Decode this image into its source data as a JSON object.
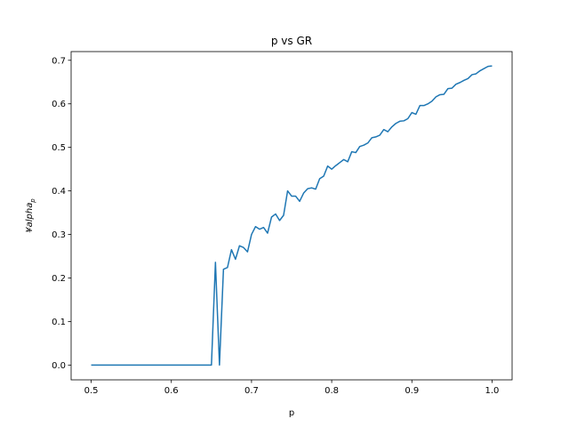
{
  "chart_data": {
    "type": "line",
    "title": "p vs GR",
    "xlabel": "p",
    "ylabel": "¥alpha",
    "ylabel_subscript": "p",
    "xlim": [
      0.475,
      1.025
    ],
    "ylim": [
      -0.034,
      0.72
    ],
    "xticks": [
      0.5,
      0.6,
      0.7,
      0.8,
      0.9,
      1.0
    ],
    "xtick_labels": [
      "0.5",
      "0.6",
      "0.7",
      "0.8",
      "0.9",
      "1.0"
    ],
    "yticks": [
      0.0,
      0.1,
      0.2,
      0.3,
      0.4,
      0.5,
      0.6,
      0.7
    ],
    "ytick_labels": [
      "0.0",
      "0.1",
      "0.2",
      "0.3",
      "0.4",
      "0.5",
      "0.6",
      "0.7"
    ],
    "grid": false,
    "line_color": "#1f77b4",
    "series": [
      {
        "x": [
          0.5,
          0.51,
          0.52,
          0.53,
          0.54,
          0.55,
          0.56,
          0.57,
          0.58,
          0.59,
          0.6,
          0.61,
          0.62,
          0.63,
          0.64,
          0.65,
          0.655,
          0.66,
          0.665,
          0.67,
          0.675,
          0.68,
          0.685,
          0.69,
          0.695,
          0.7,
          0.705,
          0.71,
          0.715,
          0.72,
          0.725,
          0.73,
          0.735,
          0.74,
          0.745,
          0.75,
          0.755,
          0.76,
          0.765,
          0.77,
          0.775,
          0.78,
          0.785,
          0.79,
          0.795,
          0.8,
          0.805,
          0.81,
          0.815,
          0.82,
          0.825,
          0.83,
          0.835,
          0.84,
          0.845,
          0.85,
          0.855,
          0.86,
          0.865,
          0.87,
          0.875,
          0.88,
          0.885,
          0.89,
          0.895,
          0.9,
          0.905,
          0.91,
          0.915,
          0.92,
          0.925,
          0.93,
          0.935,
          0.94,
          0.945,
          0.95,
          0.955,
          0.96,
          0.965,
          0.97,
          0.975,
          0.98,
          0.985,
          0.99,
          0.995,
          1.0
        ],
        "values": [
          0,
          0,
          0,
          0,
          0,
          0,
          0,
          0,
          0,
          0,
          0,
          0,
          0,
          0,
          0,
          0,
          0.236,
          0,
          0.22,
          0.224,
          0.265,
          0.243,
          0.274,
          0.27,
          0.26,
          0.3,
          0.318,
          0.312,
          0.316,
          0.303,
          0.34,
          0.347,
          0.332,
          0.344,
          0.4,
          0.388,
          0.388,
          0.376,
          0.395,
          0.405,
          0.407,
          0.404,
          0.428,
          0.434,
          0.457,
          0.45,
          0.458,
          0.465,
          0.472,
          0.467,
          0.49,
          0.488,
          0.502,
          0.505,
          0.51,
          0.522,
          0.524,
          0.528,
          0.541,
          0.536,
          0.547,
          0.555,
          0.56,
          0.561,
          0.566,
          0.58,
          0.576,
          0.596,
          0.596,
          0.6,
          0.606,
          0.616,
          0.621,
          0.622,
          0.635,
          0.636,
          0.645,
          0.649,
          0.654,
          0.658,
          0.667,
          0.669,
          0.676,
          0.681,
          0.686,
          0.687
        ]
      }
    ]
  }
}
